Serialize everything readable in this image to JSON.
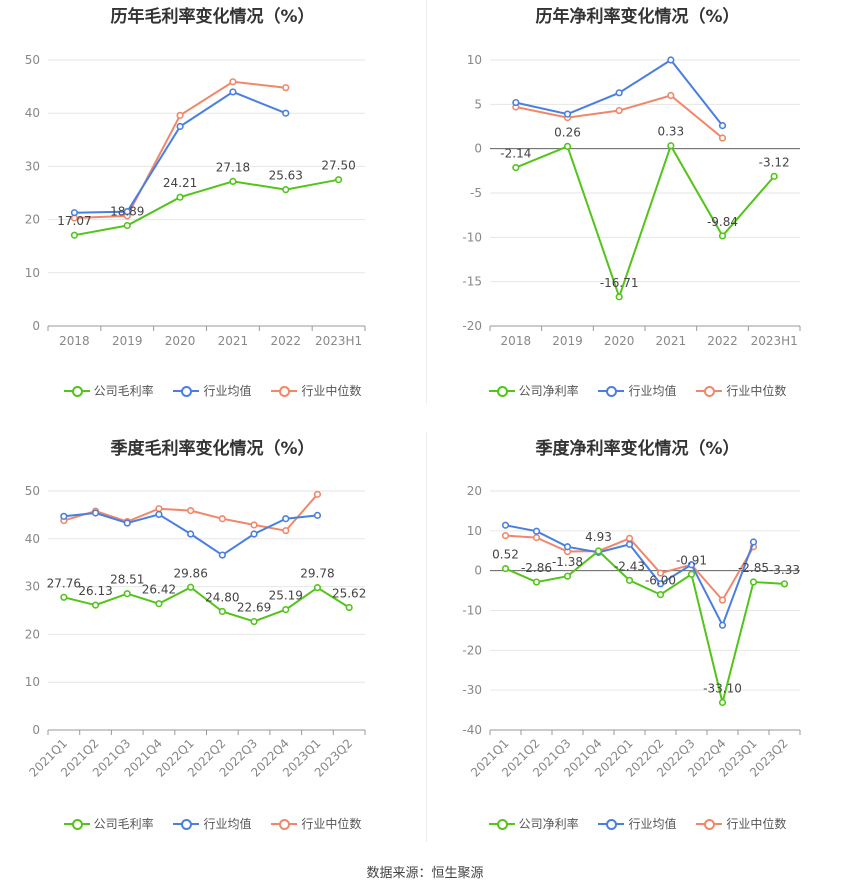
{
  "colors": {
    "company": "#52c41a",
    "avg": "#4a7fe0",
    "median": "#f0876a",
    "grid": "#e6e6e6",
    "axis": "#999999"
  },
  "footer": "数据来源：恒生聚源",
  "chart_data": [
    {
      "type": "line",
      "title": "历年毛利率变化情况（%）",
      "categories": [
        "2018",
        "2019",
        "2020",
        "2021",
        "2022",
        "2023H1"
      ],
      "yticks": [
        0,
        10,
        20,
        30,
        40,
        50
      ],
      "ylim": [
        0,
        50
      ],
      "legend": [
        "公司毛利率",
        "行业均值",
        "行业中位数"
      ],
      "series": [
        {
          "name": "公司毛利率",
          "values": [
            17.07,
            18.89,
            24.21,
            27.18,
            25.63,
            27.5
          ],
          "labels": [
            "17.07",
            "18.89",
            "24.21",
            "27.18",
            "25.63",
            "27.50"
          ]
        },
        {
          "name": "行业均值",
          "values": [
            21.3,
            21.5,
            37.5,
            44.0,
            40.0,
            null
          ]
        },
        {
          "name": "行业中位数",
          "values": [
            20.3,
            20.7,
            39.6,
            45.9,
            44.8,
            null
          ]
        }
      ]
    },
    {
      "type": "line",
      "title": "历年净利率变化情况（%）",
      "categories": [
        "2018",
        "2019",
        "2020",
        "2021",
        "2022",
        "2023H1"
      ],
      "yticks": [
        -20,
        -15,
        -10,
        -5,
        0,
        5,
        10
      ],
      "ylim": [
        -20,
        10
      ],
      "legend": [
        "公司净利率",
        "行业均值",
        "行业中位数"
      ],
      "series": [
        {
          "name": "公司净利率",
          "values": [
            -2.14,
            0.26,
            -16.71,
            0.33,
            -9.84,
            -3.12
          ],
          "labels": [
            "-2.14",
            "0.26",
            "-16.71",
            "0.33",
            "-9.84",
            "-3.12"
          ]
        },
        {
          "name": "行业均值",
          "values": [
            5.2,
            3.9,
            6.3,
            10.0,
            2.6,
            null
          ]
        },
        {
          "name": "行业中位数",
          "values": [
            4.7,
            3.5,
            4.3,
            6.0,
            1.2,
            null
          ]
        }
      ]
    },
    {
      "type": "line",
      "title": "季度毛利率变化情况（%）",
      "categories": [
        "2021Q1",
        "2021Q2",
        "2021Q3",
        "2021Q4",
        "2022Q1",
        "2022Q2",
        "2022Q3",
        "2022Q4",
        "2023Q1",
        "2023Q2"
      ],
      "yticks": [
        0,
        10,
        20,
        30,
        40,
        50
      ],
      "ylim": [
        0,
        50
      ],
      "legend": [
        "公司毛利率",
        "行业均值",
        "行业中位数"
      ],
      "series": [
        {
          "name": "公司毛利率",
          "values": [
            27.76,
            26.13,
            28.51,
            26.42,
            29.86,
            24.8,
            22.69,
            25.19,
            29.78,
            25.62
          ],
          "labels": [
            "27.76",
            "26.13",
            "28.51",
            "26.42",
            "29.86",
            "24.80",
            "22.69",
            "25.19",
            "29.78",
            "25.62"
          ]
        },
        {
          "name": "行业均值",
          "values": [
            44.7,
            45.4,
            43.3,
            45.1,
            41.0,
            36.6,
            41.0,
            44.2,
            44.9,
            null
          ]
        },
        {
          "name": "行业中位数",
          "values": [
            43.8,
            45.8,
            43.6,
            46.3,
            45.9,
            44.2,
            42.9,
            41.7,
            49.3,
            null
          ]
        }
      ]
    },
    {
      "type": "line",
      "title": "季度净利率变化情况（%）",
      "categories": [
        "2021Q1",
        "2021Q2",
        "2021Q3",
        "2021Q4",
        "2022Q1",
        "2022Q2",
        "2022Q3",
        "2022Q4",
        "2023Q1",
        "2023Q2"
      ],
      "yticks": [
        -40,
        -30,
        -20,
        -10,
        0,
        10,
        20
      ],
      "ylim": [
        -40,
        20
      ],
      "legend": [
        "公司净利率",
        "行业均值",
        "行业中位数"
      ],
      "series": [
        {
          "name": "公司净利率",
          "values": [
            0.52,
            -2.86,
            -1.38,
            4.93,
            -2.43,
            -6.0,
            -0.91,
            -33.1,
            -2.85,
            -3.33
          ],
          "labels": [
            "0.52",
            "-2.86",
            "-1.38",
            "4.93",
            "-2.43",
            "-6.00",
            "-0.91",
            "-33.10",
            "-2.85",
            "-3.33"
          ]
        },
        {
          "name": "行业均值",
          "values": [
            11.4,
            9.9,
            6.0,
            4.6,
            6.6,
            -3.3,
            1.5,
            -13.7,
            7.2,
            null
          ]
        },
        {
          "name": "行业中位数",
          "values": [
            8.8,
            8.3,
            4.8,
            4.9,
            8.1,
            -0.6,
            1.5,
            -7.4,
            6.0,
            null
          ]
        }
      ]
    }
  ]
}
